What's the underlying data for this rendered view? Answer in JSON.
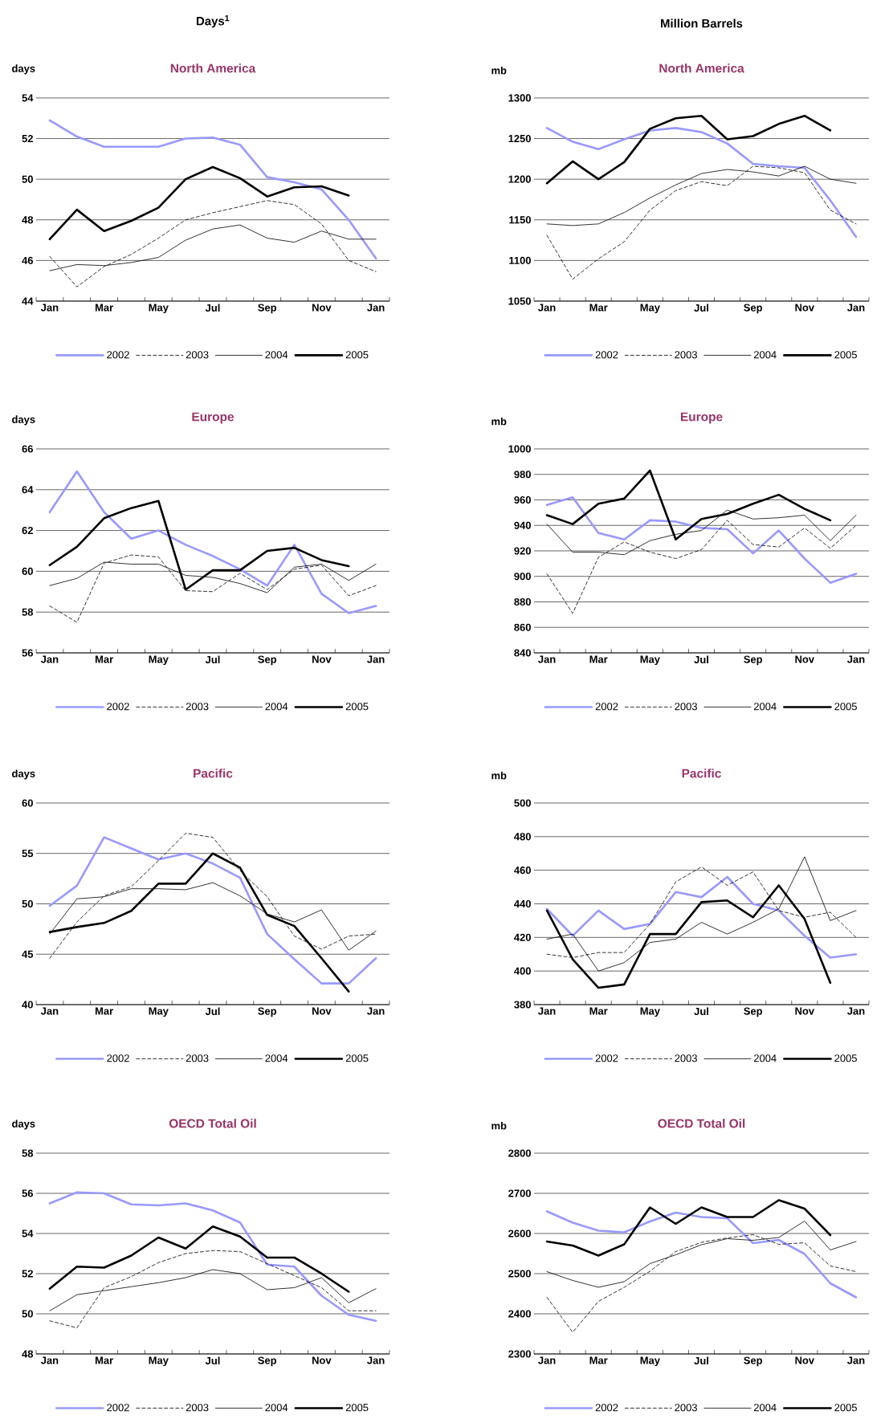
{
  "chart_data": [
    {
      "type": "line",
      "title": "North America",
      "ylabel": "days",
      "annotations": [
        "Days$^{1}$"
      ],
      "categories": [
        "Jan",
        null,
        "Mar",
        null,
        "May",
        null,
        "Jul",
        null,
        "Sep",
        null,
        "Nov",
        null,
        "Jan"
      ],
      "ylim": [
        44,
        54
      ],
      "yticks": [
        44,
        46,
        48,
        50,
        52,
        54
      ],
      "grid": "y",
      "legend": "bottom",
      "series": [
        {
          "name": "2002",
          "color": "#9999ff",
          "line_style": "solid",
          "values": [
            52.9,
            52.1,
            51.6,
            51.6,
            51.6,
            52.0,
            52.05,
            51.7,
            50.1,
            49.85,
            49.5,
            48.0,
            46.1
          ]
        },
        {
          "name": "2003",
          "color": "#000000",
          "line_style": "dashed",
          "values": [
            46.2,
            44.7,
            45.7,
            46.3,
            47.1,
            48.0,
            48.35,
            48.65,
            48.95,
            48.75,
            47.8,
            46.0,
            45.45
          ]
        },
        {
          "name": "2004",
          "color": "#000000",
          "line_style": "solid",
          "values": [
            45.5,
            45.8,
            45.75,
            45.9,
            46.15,
            47.0,
            47.55,
            47.75,
            47.1,
            46.9,
            47.45,
            47.05,
            47.05
          ]
        },
        {
          "name": "2005",
          "color": "#000000",
          "line_style": "solid",
          "values": [
            47.05,
            48.5,
            47.45,
            47.95,
            48.6,
            50.0,
            50.6,
            50.05,
            49.15,
            49.6,
            49.65,
            49.2,
            null
          ]
        }
      ]
    },
    {
      "type": "line",
      "title": "North America",
      "ylabel": "mb",
      "annotations": [
        "Million Barrels"
      ],
      "categories": [
        "Jan",
        null,
        "Mar",
        null,
        "May",
        null,
        "Jul",
        null,
        "Sep",
        null,
        "Nov",
        null,
        "Jan"
      ],
      "ylim": [
        1050,
        1300
      ],
      "yticks": [
        1050,
        1100,
        1150,
        1200,
        1250,
        1300
      ],
      "grid": "y",
      "legend": "bottom",
      "series": [
        {
          "name": "2002",
          "color": "#9999ff",
          "line_style": "solid",
          "values": [
            1263,
            1246,
            1237,
            1249,
            1260,
            1263,
            1258,
            1244,
            1219,
            1216,
            1214,
            1174,
            1129
          ]
        },
        {
          "name": "2003",
          "color": "#000000",
          "line_style": "dashed",
          "values": [
            1131,
            1077,
            1102,
            1123,
            1162,
            1186,
            1197,
            1192,
            1216,
            1214,
            1208,
            1162,
            1145
          ]
        },
        {
          "name": "2004",
          "color": "#000000",
          "line_style": "solid",
          "values": [
            1145,
            1143,
            1145,
            1159,
            1177,
            1193,
            1207,
            1212,
            1209,
            1204,
            1216,
            1200,
            1195
          ]
        },
        {
          "name": "2005",
          "color": "#000000",
          "line_style": "solid",
          "values": [
            1195,
            1222,
            1200,
            1221,
            1262,
            1275,
            1278,
            1249,
            1253,
            1268,
            1278,
            1260,
            null
          ]
        }
      ]
    },
    {
      "type": "line",
      "title": "Europe",
      "ylabel": "days",
      "categories": [
        "Jan",
        null,
        "Mar",
        null,
        "May",
        null,
        "Jul",
        null,
        "Sep",
        null,
        "Nov",
        null,
        "Jan"
      ],
      "ylim": [
        56,
        66
      ],
      "yticks": [
        56,
        58,
        60,
        62,
        64,
        66
      ],
      "grid": "y",
      "legend": "bottom",
      "series": [
        {
          "name": "2002",
          "color": "#9999ff",
          "line_style": "solid",
          "values": [
            62.9,
            64.9,
            62.9,
            61.6,
            62.0,
            61.3,
            60.75,
            60.1,
            59.3,
            61.3,
            58.9,
            57.95,
            58.3
          ]
        },
        {
          "name": "2003",
          "color": "#000000",
          "line_style": "dashed",
          "values": [
            58.3,
            57.5,
            60.4,
            60.8,
            60.7,
            59.05,
            59.0,
            59.9,
            59.1,
            60.1,
            60.3,
            58.8,
            59.3
          ]
        },
        {
          "name": "2004",
          "color": "#000000",
          "line_style": "solid",
          "values": [
            59.3,
            59.65,
            60.45,
            60.35,
            60.35,
            59.8,
            59.7,
            59.4,
            58.95,
            60.2,
            60.35,
            59.55,
            60.35
          ]
        },
        {
          "name": "2005",
          "color": "#000000",
          "line_style": "solid",
          "values": [
            60.3,
            61.2,
            62.6,
            63.1,
            63.45,
            59.1,
            60.05,
            60.05,
            61.0,
            61.15,
            60.55,
            60.25,
            null
          ]
        }
      ]
    },
    {
      "type": "line",
      "title": "Europe",
      "ylabel": "mb",
      "categories": [
        "Jan",
        null,
        "Mar",
        null,
        "May",
        null,
        "Jul",
        null,
        "Sep",
        null,
        "Nov",
        null,
        "Jan"
      ],
      "ylim": [
        840,
        1000
      ],
      "yticks": [
        840,
        860,
        880,
        900,
        920,
        940,
        960,
        980,
        1000
      ],
      "grid": "y",
      "legend": "bottom",
      "series": [
        {
          "name": "2002",
          "color": "#9999ff",
          "line_style": "solid",
          "values": [
            956,
            962,
            934,
            929,
            944,
            943,
            938,
            937,
            918,
            936,
            914,
            895,
            902
          ]
        },
        {
          "name": "2003",
          "color": "#000000",
          "line_style": "dashed",
          "values": [
            902,
            871,
            915,
            927,
            919,
            914,
            921,
            944,
            925,
            923,
            938,
            922,
            940
          ]
        },
        {
          "name": "2004",
          "color": "#000000",
          "line_style": "solid",
          "values": [
            941,
            919,
            919,
            917,
            928,
            933,
            936,
            952,
            945,
            946,
            948,
            928,
            948
          ]
        },
        {
          "name": "2005",
          "color": "#000000",
          "line_style": "solid",
          "values": [
            948,
            941,
            957,
            961,
            983,
            929,
            945,
            949,
            957,
            964,
            953,
            944,
            null
          ]
        }
      ]
    },
    {
      "type": "line",
      "title": "Pacific",
      "ylabel": "days",
      "categories": [
        "Jan",
        null,
        "Mar",
        null,
        "May",
        null,
        "Jul",
        null,
        "Sep",
        null,
        "Nov",
        null,
        "Jan"
      ],
      "ylim": [
        40,
        60
      ],
      "yticks": [
        40,
        45,
        50,
        55,
        60
      ],
      "grid": "y",
      "legend": "bottom",
      "series": [
        {
          "name": "2002",
          "color": "#9999ff",
          "line_style": "solid",
          "values": [
            49.8,
            51.8,
            56.6,
            55.5,
            54.4,
            55.0,
            54.0,
            52.6,
            47.0,
            44.5,
            42.1,
            42.1,
            44.6
          ]
        },
        {
          "name": "2003",
          "color": "#000000",
          "line_style": "dashed",
          "values": [
            44.6,
            48.2,
            50.8,
            51.7,
            54.3,
            57.0,
            56.6,
            53.3,
            50.7,
            46.8,
            45.5,
            46.8,
            47.0
          ]
        },
        {
          "name": "2004",
          "color": "#000000",
          "line_style": "solid",
          "values": [
            47.0,
            50.5,
            50.7,
            51.5,
            51.5,
            51.4,
            52.1,
            50.8,
            49.0,
            48.2,
            49.4,
            45.4,
            47.3
          ]
        },
        {
          "name": "2005",
          "color": "#000000",
          "line_style": "solid",
          "values": [
            47.2,
            47.7,
            48.1,
            49.3,
            52.0,
            52.0,
            55.0,
            53.6,
            48.9,
            47.8,
            44.6,
            41.3,
            null
          ]
        }
      ]
    },
    {
      "type": "line",
      "title": "Pacific",
      "ylabel": "mb",
      "categories": [
        "Jan",
        null,
        "Mar",
        null,
        "May",
        null,
        "Jul",
        null,
        "Sep",
        null,
        "Nov",
        null,
        "Jan"
      ],
      "ylim": [
        380,
        500
      ],
      "yticks": [
        380,
        400,
        420,
        440,
        460,
        480,
        500
      ],
      "grid": "y",
      "legend": "bottom",
      "series": [
        {
          "name": "2002",
          "color": "#9999ff",
          "line_style": "solid",
          "values": [
            437,
            421,
            436,
            425,
            428,
            447,
            444,
            456,
            440,
            436,
            421,
            408,
            410
          ]
        },
        {
          "name": "2003",
          "color": "#000000",
          "line_style": "dashed",
          "values": [
            410,
            408,
            411,
            411,
            428,
            453,
            462,
            451,
            459,
            436,
            432,
            435,
            420
          ]
        },
        {
          "name": "2004",
          "color": "#000000",
          "line_style": "solid",
          "values": [
            419,
            422,
            400,
            405,
            417,
            419,
            429,
            422,
            429,
            437,
            468,
            430,
            436
          ]
        },
        {
          "name": "2005",
          "color": "#000000",
          "line_style": "solid",
          "values": [
            436,
            407,
            390,
            392,
            422,
            422,
            441,
            442,
            432,
            451,
            431,
            393,
            null
          ]
        }
      ]
    },
    {
      "type": "line",
      "title": "OECD Total Oil",
      "ylabel": "days",
      "categories": [
        "Jan",
        null,
        "Mar",
        null,
        "May",
        null,
        "Jul",
        null,
        "Sep",
        null,
        "Nov",
        null,
        "Jan"
      ],
      "ylim": [
        48,
        58
      ],
      "yticks": [
        48,
        50,
        52,
        54,
        56,
        58
      ],
      "grid": "y",
      "legend": "bottom",
      "series": [
        {
          "name": "2002",
          "color": "#9999ff",
          "line_style": "solid",
          "values": [
            55.5,
            56.05,
            56.0,
            55.45,
            55.4,
            55.5,
            55.15,
            54.55,
            52.45,
            52.35,
            50.9,
            49.95,
            49.65
          ]
        },
        {
          "name": "2003",
          "color": "#000000",
          "line_style": "dashed",
          "values": [
            49.65,
            49.3,
            51.3,
            51.85,
            52.55,
            53.0,
            53.15,
            53.1,
            52.5,
            51.9,
            51.3,
            50.15,
            50.15
          ]
        },
        {
          "name": "2004",
          "color": "#000000",
          "line_style": "solid",
          "values": [
            50.15,
            50.95,
            51.15,
            51.35,
            51.55,
            51.8,
            52.2,
            52.0,
            51.2,
            51.3,
            51.8,
            50.55,
            51.25
          ]
        },
        {
          "name": "2005",
          "color": "#000000",
          "line_style": "solid",
          "values": [
            51.25,
            52.35,
            52.3,
            52.9,
            53.8,
            53.25,
            54.35,
            53.85,
            52.8,
            52.8,
            52.0,
            51.1,
            null
          ]
        }
      ]
    },
    {
      "type": "line",
      "title": "OECD Total Oil",
      "ylabel": "mb",
      "categories": [
        "Jan",
        null,
        "Mar",
        null,
        "May",
        null,
        "Jul",
        null,
        "Sep",
        null,
        "Nov",
        null,
        "Jan"
      ],
      "ylim": [
        2300,
        2800
      ],
      "yticks": [
        2300,
        2400,
        2500,
        2600,
        2700,
        2800
      ],
      "grid": "y",
      "legend": "bottom",
      "series": [
        {
          "name": "2002",
          "color": "#9999ff",
          "line_style": "solid",
          "values": [
            2655,
            2627,
            2607,
            2603,
            2630,
            2652,
            2641,
            2638,
            2576,
            2584,
            2549,
            2476,
            2441
          ]
        },
        {
          "name": "2003",
          "color": "#000000",
          "line_style": "dashed",
          "values": [
            2441,
            2354,
            2431,
            2466,
            2506,
            2555,
            2578,
            2589,
            2597,
            2573,
            2577,
            2519,
            2505
          ]
        },
        {
          "name": "2004",
          "color": "#000000",
          "line_style": "solid",
          "values": [
            2505,
            2483,
            2466,
            2480,
            2525,
            2547,
            2572,
            2587,
            2583,
            2590,
            2631,
            2559,
            2580
          ]
        },
        {
          "name": "2005",
          "color": "#000000",
          "line_style": "solid",
          "values": [
            2580,
            2570,
            2545,
            2573,
            2665,
            2624,
            2665,
            2641,
            2641,
            2683,
            2662,
            2596,
            null
          ]
        }
      ]
    }
  ]
}
